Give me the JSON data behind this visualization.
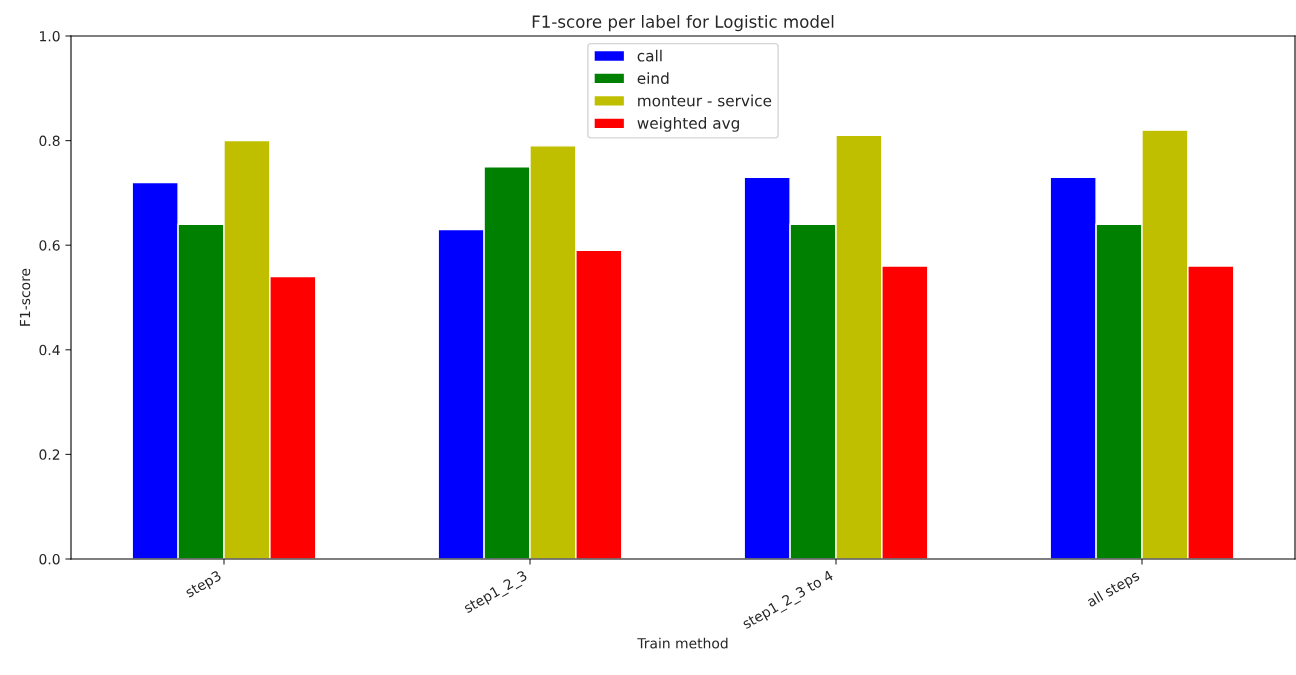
{
  "chart_data": {
    "type": "bar",
    "title": "F1-score per label for Logistic model",
    "xlabel": "Train method",
    "ylabel": "F1-score",
    "categories": [
      "step3",
      "step1_2_3",
      "step1_2_3 to 4",
      "all steps"
    ],
    "series": [
      {
        "name": "call",
        "color": "#0000ff",
        "values": [
          0.72,
          0.63,
          0.73,
          0.73
        ]
      },
      {
        "name": "eind",
        "color": "#008000",
        "values": [
          0.64,
          0.75,
          0.64,
          0.64
        ]
      },
      {
        "name": "monteur - service",
        "color": "#bfbf00",
        "values": [
          0.8,
          0.79,
          0.81,
          0.82
        ]
      },
      {
        "name": "weighted avg",
        "color": "#ff0000",
        "values": [
          0.54,
          0.59,
          0.56,
          0.56
        ]
      }
    ],
    "ylim": [
      0,
      1.0
    ],
    "yticks": [
      {
        "value": 0,
        "label": "0.0"
      },
      0.2,
      0.4,
      0.6,
      0.8,
      {
        "value": 1.0,
        "label": "1.0"
      }
    ],
    "grid": false,
    "legend": "top"
  }
}
